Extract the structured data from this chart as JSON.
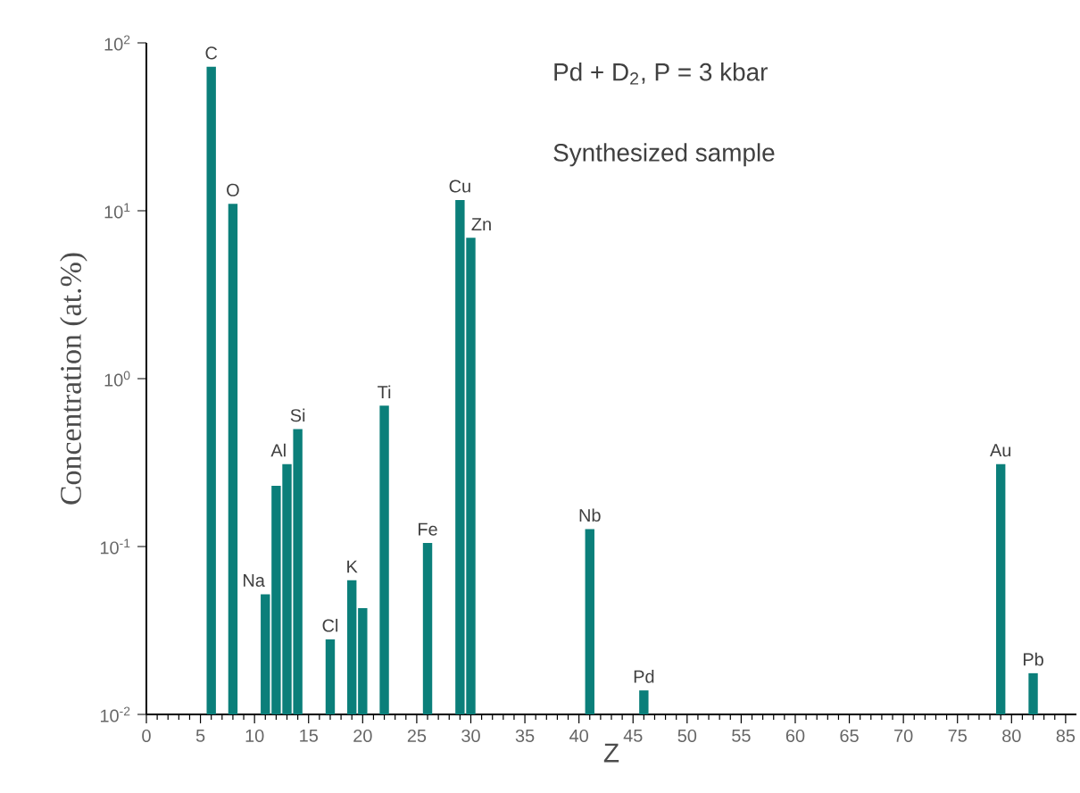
{
  "chart_data": {
    "type": "bar",
    "color": "#0b7f7a",
    "x": [
      6,
      8,
      11,
      12,
      13,
      14,
      17,
      19,
      20,
      22,
      26,
      29,
      30,
      41,
      46,
      79,
      82
    ],
    "values": [
      72,
      11,
      0.052,
      0.23,
      0.31,
      0.5,
      0.028,
      0.063,
      0.043,
      0.69,
      0.105,
      11.6,
      6.9,
      0.127,
      0.0139,
      0.31,
      0.0176
    ],
    "xlabel": "Z",
    "ylabel": "Concentration  (at.%)",
    "xlim": [
      0,
      86
    ],
    "ylim": [
      0.01,
      100
    ],
    "log": true,
    "xticks": [
      0,
      5,
      10,
      15,
      20,
      25,
      30,
      35,
      40,
      45,
      50,
      55,
      60,
      65,
      70,
      75,
      80,
      85
    ],
    "yticks": [
      {
        "value": 0.01,
        "label": "10$^{-2}$"
      },
      {
        "value": 0.1,
        "label": "10$^{-1}$"
      },
      {
        "value": 1,
        "label": "10$^{0}$"
      },
      {
        "value": 10,
        "label": "10$^{1}$"
      },
      {
        "value": 100,
        "label": "10$^{2}$"
      }
    ],
    "annotations": [
      "Pd + D$_{2}$,  P = 3 kbar",
      "Synthesized sample",
      {
        "text": "C",
        "x": 6,
        "y": 72
      },
      {
        "text": "O",
        "x": 8,
        "y": 11
      },
      {
        "text": "Na",
        "x": 11,
        "y": 0.052
      },
      {
        "text": "Al",
        "x": 13,
        "y": 0.31
      },
      {
        "text": "Si",
        "x": 14,
        "y": 0.5
      },
      {
        "text": "Cl",
        "x": 17,
        "y": 0.028
      },
      {
        "text": "K",
        "x": 19,
        "y": 0.063
      },
      {
        "text": "Ti",
        "x": 22,
        "y": 0.69
      },
      {
        "text": "Fe",
        "x": 26,
        "y": 0.105
      },
      {
        "text": "Cu",
        "x": 29,
        "y": 11.6
      },
      {
        "text": "Zn",
        "x": 30,
        "y": 6.9
      },
      {
        "text": "Nb",
        "x": 41,
        "y": 0.127
      },
      {
        "text": "Pd",
        "x": 46,
        "y": 0.0139
      },
      {
        "text": "Au",
        "x": 79,
        "y": 0.31
      },
      {
        "text": "Pb",
        "x": 82,
        "y": 0.0176
      }
    ]
  }
}
